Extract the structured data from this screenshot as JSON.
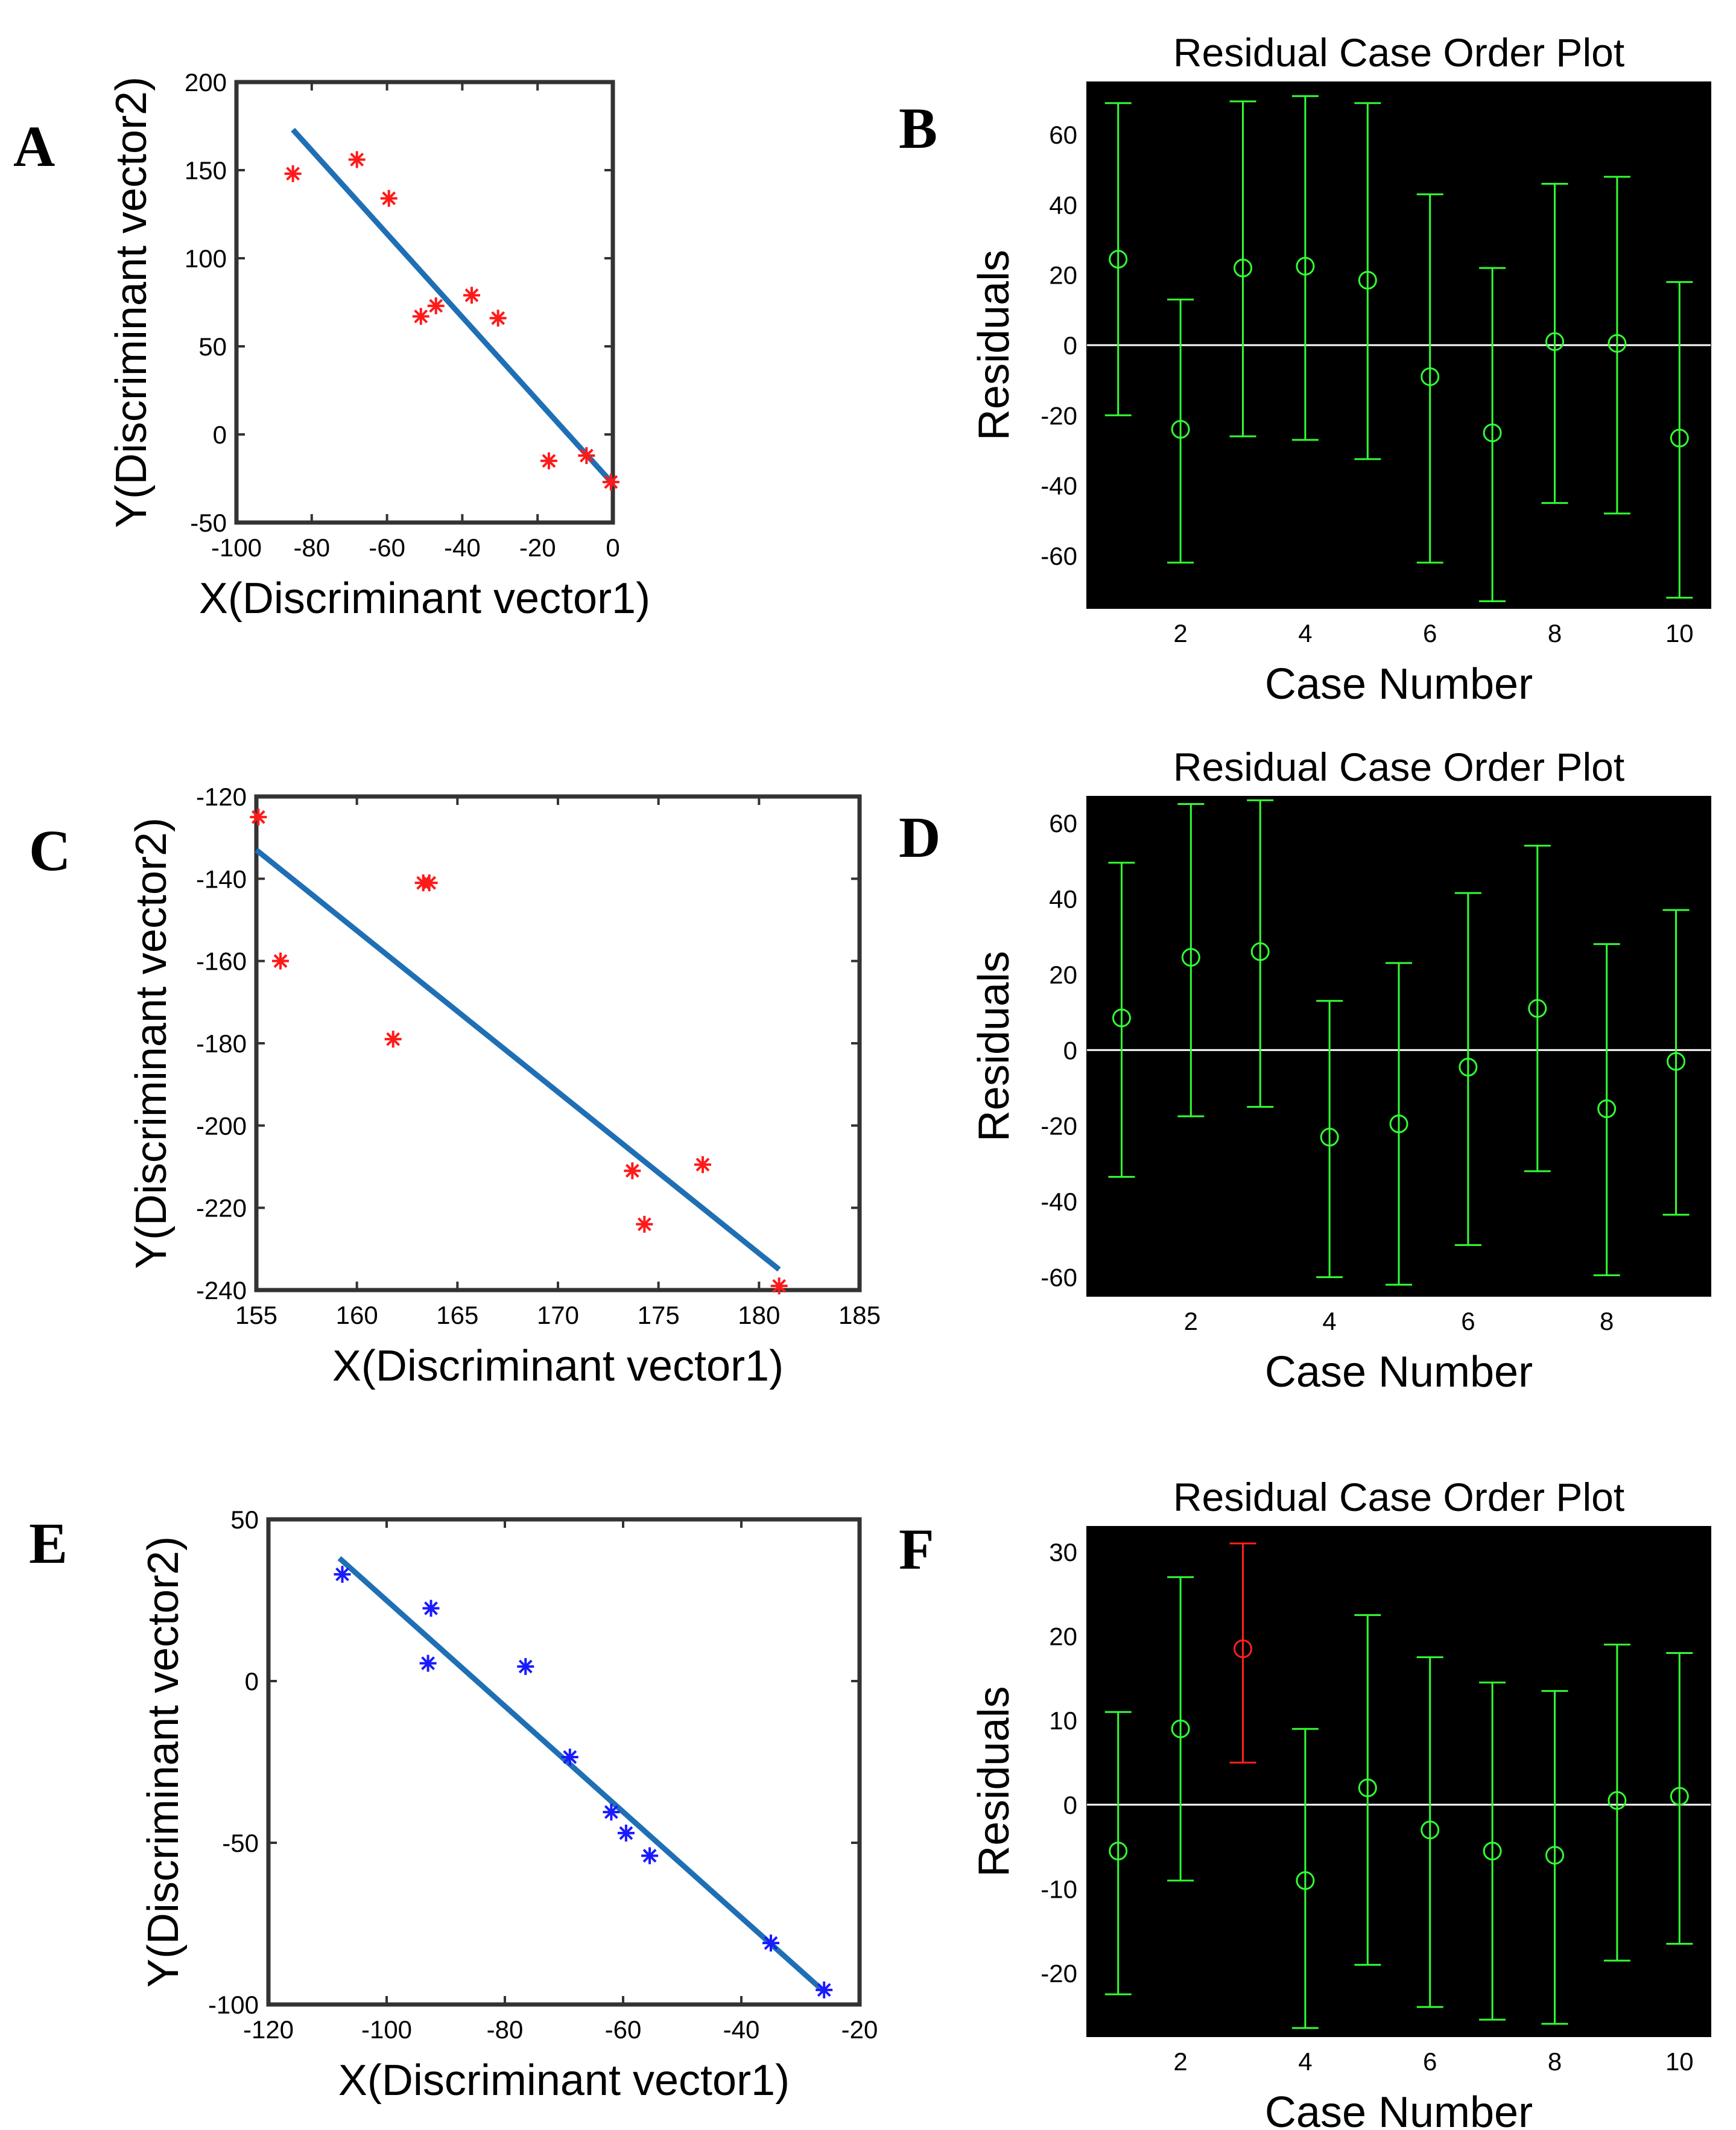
{
  "chart_data": [
    {
      "panel": "A",
      "type": "scatter",
      "title": "",
      "xlabel": "X(Discriminant vector1)",
      "ylabel": "Y(Discriminant vector2)",
      "xlim": [
        -100,
        0
      ],
      "ylim": [
        -50,
        200
      ],
      "xticks": [
        -100,
        -80,
        -60,
        -40,
        -20,
        0
      ],
      "yticks": [
        -50,
        0,
        50,
        100,
        150,
        200
      ],
      "marker": "*",
      "marker_color": "#ff1a1a",
      "line_color": "#1f6fb5",
      "x": [
        -85,
        -68,
        -59.5,
        -51,
        -47,
        -37.5,
        -30.5,
        -17,
        -7,
        -0.5
      ],
      "y": [
        148,
        156,
        134,
        67,
        73,
        79,
        66,
        -15,
        -12,
        -27
      ],
      "fit_line": {
        "x": [
          -85,
          0
        ],
        "y": [
          173,
          -28
        ]
      }
    },
    {
      "panel": "B",
      "type": "errorbar",
      "title": "Residual Case Order Plot",
      "xlabel": "Case Number",
      "ylabel": "Residuals",
      "xlim": [
        0.5,
        10.5
      ],
      "ylim": [
        -75,
        75
      ],
      "xticks": [
        2,
        4,
        6,
        8,
        10
      ],
      "yticks": [
        -60,
        -40,
        -20,
        0,
        20,
        40,
        60
      ],
      "background": "#000000",
      "bar_color": "#33ff33",
      "zero_line_color": "#ffffff",
      "cases": [
        1,
        2,
        3,
        4,
        5,
        6,
        7,
        8,
        9,
        10
      ],
      "residuals": [
        24.5,
        -24,
        22,
        22.5,
        18.5,
        -9,
        -25,
        1,
        0.5,
        -26.5
      ],
      "lower": [
        -20,
        -62,
        -26,
        -27,
        -32.5,
        -62,
        -73,
        -45,
        -48,
        -72
      ],
      "upper": [
        69,
        13,
        69.5,
        71,
        69,
        43,
        22,
        46,
        48,
        18
      ],
      "outliers": []
    },
    {
      "panel": "C",
      "type": "scatter",
      "title": "",
      "xlabel": "X(Discriminant vector1)",
      "ylabel": "Y(Discriminant vector2)",
      "xlim": [
        155,
        185
      ],
      "ylim": [
        -240,
        -120
      ],
      "xticks": [
        155,
        160,
        165,
        170,
        175,
        180,
        185
      ],
      "yticks": [
        -240,
        -220,
        -200,
        -180,
        -160,
        -140,
        -120
      ],
      "marker": "*",
      "marker_color": "#ff1a1a",
      "line_color": "#1f6fb5",
      "x": [
        155.1,
        156.2,
        161.8,
        163.3,
        163.6,
        173.7,
        174.3,
        177.2,
        181
      ],
      "y": [
        -125,
        -160,
        -179,
        -141,
        -141,
        -211,
        -224,
        -209.5,
        -239
      ],
      "fit_line": {
        "x": [
          155,
          181
        ],
        "y": [
          -133,
          -235
        ]
      }
    },
    {
      "panel": "D",
      "type": "errorbar",
      "title": "Residual Case Order Plot",
      "xlabel": "Case Number",
      "ylabel": "Residuals",
      "xlim": [
        0.5,
        9.5
      ],
      "ylim": [
        -65,
        67
      ],
      "xticks": [
        2,
        4,
        6,
        8
      ],
      "yticks": [
        -60,
        -40,
        -20,
        0,
        20,
        40,
        60
      ],
      "background": "#000000",
      "bar_color": "#33ff33",
      "zero_line_color": "#ffffff",
      "cases": [
        1,
        2,
        3,
        4,
        5,
        6,
        7,
        8,
        9
      ],
      "residuals": [
        8.5,
        24.5,
        26,
        -23,
        -19.5,
        -4.5,
        11,
        -15.5,
        -3
      ],
      "lower": [
        -33.5,
        -17.5,
        -15,
        -60,
        -62,
        -51.5,
        -32,
        -59.5,
        -43.5
      ],
      "upper": [
        49.5,
        65,
        66,
        13,
        23,
        41.5,
        54,
        28,
        37
      ],
      "outliers": []
    },
    {
      "panel": "E",
      "type": "scatter",
      "title": "",
      "xlabel": "X(Discriminant vector1)",
      "ylabel": "Y(Discriminant vector2)",
      "xlim": [
        -120,
        -20
      ],
      "ylim": [
        -100,
        50
      ],
      "xticks": [
        -120,
        -100,
        -80,
        -60,
        -40,
        -20
      ],
      "yticks": [
        -100,
        -50,
        0,
        50
      ],
      "marker": "*",
      "marker_color": "#1a1aff",
      "line_color": "#1f6fb5",
      "x": [
        -107.5,
        -92.5,
        -93,
        -76.5,
        -69,
        -62,
        -59.5,
        -55.5,
        -35,
        -26
      ],
      "y": [
        33,
        22.5,
        5.5,
        4.5,
        -23.5,
        -40.5,
        -47,
        -54,
        -81,
        -95.5
      ],
      "fit_line": {
        "x": [
          -108,
          -26
        ],
        "y": [
          38,
          -96
        ]
      }
    },
    {
      "panel": "F",
      "type": "errorbar",
      "title": "Residual Case Order Plot",
      "xlabel": "Case Number",
      "ylabel": "Residuals",
      "xlim": [
        0.5,
        10.5
      ],
      "ylim": [
        -27.5,
        33
      ],
      "xticks": [
        2,
        4,
        6,
        8,
        10
      ],
      "yticks": [
        -20,
        -10,
        0,
        10,
        20,
        30
      ],
      "background": "#000000",
      "bar_color": "#33ff33",
      "outlier_color": "#ff2020",
      "zero_line_color": "#ffffff",
      "cases": [
        1,
        2,
        3,
        4,
        5,
        6,
        7,
        8,
        9,
        10
      ],
      "residuals": [
        -5.5,
        9,
        18.5,
        -9,
        2,
        -3,
        -5.5,
        -6,
        0.5,
        1
      ],
      "lower": [
        -22.5,
        -9,
        5,
        -26.5,
        -19,
        -24,
        -25.5,
        -26,
        -18.5,
        -16.5
      ],
      "upper": [
        11,
        27,
        31,
        9,
        22.5,
        17.5,
        14.5,
        13.5,
        19,
        18
      ],
      "outliers": [
        3
      ]
    }
  ]
}
